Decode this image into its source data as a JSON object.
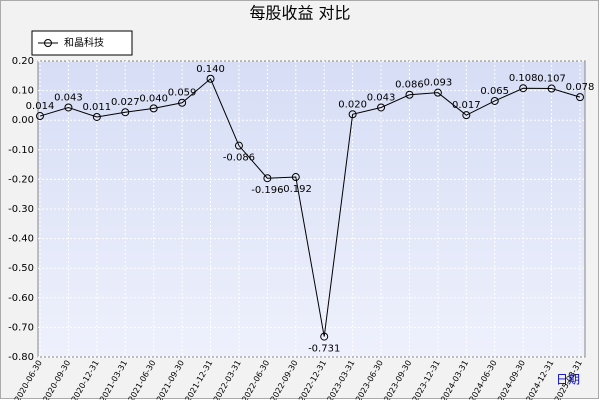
{
  "chart_data": {
    "type": "line",
    "title": "每股收益 对比",
    "x_label": "日期",
    "categories": [
      "2020-06-30",
      "2020-09-30",
      "2020-12-31",
      "2021-03-31",
      "2021-06-30",
      "2021-09-30",
      "2021-12-31",
      "2022-03-31",
      "2022-06-30",
      "2022-09-30",
      "2022-12-31",
      "2023-03-31",
      "2023-06-30",
      "2023-09-30",
      "2023-12-31",
      "2024-03-31",
      "2024-06-30",
      "2024-09-30",
      "2024-12-31",
      "2025-03-31"
    ],
    "series": [
      {
        "name": "和晶科技",
        "color": "#000000",
        "values": [
          0.014,
          0.043,
          0.011,
          0.027,
          0.04,
          0.059,
          0.14,
          -0.086,
          -0.196,
          -0.192,
          -0.731,
          0.02,
          0.043,
          0.086,
          0.093,
          0.017,
          0.065,
          0.108,
          0.107,
          0.078
        ],
        "value_labels": [
          "0.014",
          "0.043",
          "0.011",
          "0.027",
          "0.040",
          "0.059",
          "0.140",
          "-0.086",
          "-0.196",
          "-0.192",
          "-0.731",
          "0.020",
          "0.043",
          "0.086",
          "0.093",
          "0.017",
          "0.065",
          "0.108",
          "0.107",
          "0.078"
        ]
      }
    ],
    "ylim": [
      -0.8,
      0.2
    ],
    "yticks": [
      {
        "value": 0.2,
        "label": "0.20"
      },
      {
        "value": 0.1,
        "label": "0.10"
      },
      {
        "value": 0,
        "label": "0.00"
      },
      {
        "value": -0.1,
        "label": "-0.10"
      },
      {
        "value": -0.2,
        "label": "-0.20"
      },
      {
        "value": -0.3,
        "label": "-0.30"
      },
      {
        "value": -0.4,
        "label": "-0.40"
      },
      {
        "value": -0.5,
        "label": "-0.50"
      },
      {
        "value": -0.6,
        "label": "-0.60"
      },
      {
        "value": -0.7,
        "label": "-0.70"
      },
      {
        "value": -0.8,
        "label": "-0.80"
      }
    ],
    "grid": true,
    "legend": "top-left"
  }
}
